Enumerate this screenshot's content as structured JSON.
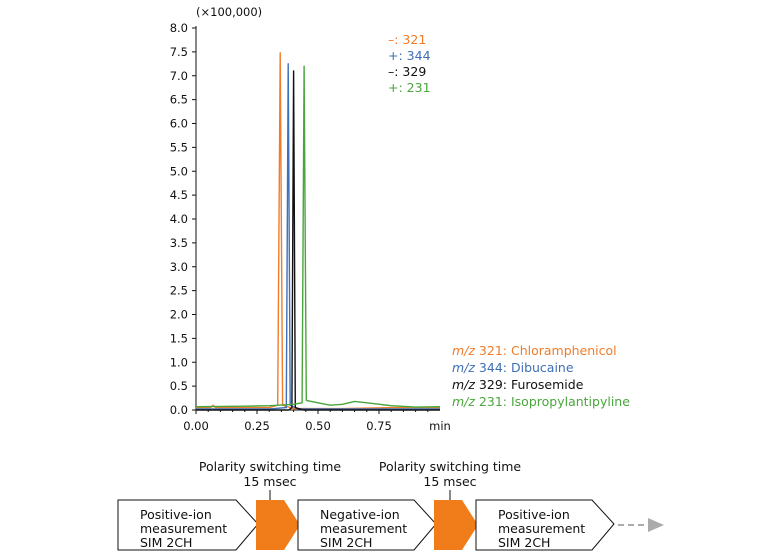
{
  "chart_data": {
    "type": "line",
    "x_unit": "min",
    "y_scale_label": "(×100,000)",
    "xlim": [
      0,
      1.0
    ],
    "ylim": [
      0,
      8.0
    ],
    "x_ticks": [
      0.0,
      0.25,
      0.5,
      0.75
    ],
    "x_tick_labels": [
      "0.00",
      "0.25",
      "0.50",
      "0.75"
    ],
    "y_ticks": [
      0.0,
      0.5,
      1.0,
      1.5,
      2.0,
      2.5,
      3.0,
      3.5,
      4.0,
      4.5,
      5.0,
      5.5,
      6.0,
      6.5,
      7.0,
      7.5,
      8.0
    ],
    "y_tick_labels": [
      "0.0",
      "0.5",
      "1.0",
      "1.5",
      "2.0",
      "2.5",
      "3.0",
      "3.5",
      "4.0",
      "4.5",
      "5.0",
      "5.5",
      "6.0",
      "6.5",
      "7.0",
      "7.5",
      "8.0"
    ],
    "grid": false,
    "legend_position": "top-right",
    "series": [
      {
        "legend": "–: 321",
        "prefix": "m/z",
        "value": "321",
        "compound": "Chloramphenicol",
        "color": "#f07c2a",
        "points": [
          [
            0,
            0.05
          ],
          [
            0.06,
            0.05
          ],
          [
            0.07,
            0.1
          ],
          [
            0.08,
            0.05
          ],
          [
            0.2,
            0.05
          ],
          [
            0.3,
            0.05
          ],
          [
            0.335,
            0.1
          ],
          [
            0.345,
            7.48
          ],
          [
            0.355,
            0.1
          ],
          [
            0.4,
            0.03
          ],
          [
            0.6,
            0.03
          ],
          [
            0.8,
            0.05
          ],
          [
            1.0,
            0.05
          ]
        ]
      },
      {
        "legend": "+: 344",
        "prefix": "m/z",
        "value": "344",
        "compound": "Dibucaine",
        "color": "#3f6fb6",
        "points": [
          [
            0,
            0.02
          ],
          [
            0.3,
            0.02
          ],
          [
            0.37,
            0.05
          ],
          [
            0.378,
            7.25
          ],
          [
            0.386,
            0.1
          ],
          [
            0.42,
            0.02
          ],
          [
            0.7,
            0.02
          ],
          [
            1.0,
            0.02
          ]
        ]
      },
      {
        "legend": "–: 329",
        "prefix": "m/z",
        "value": "329",
        "compound": "Furosemide",
        "color": "#111111",
        "points": [
          [
            0,
            0.0
          ],
          [
            0.38,
            0.0
          ],
          [
            0.393,
            0.05
          ],
          [
            0.4,
            7.1
          ],
          [
            0.407,
            0.05
          ],
          [
            0.44,
            0.0
          ],
          [
            1.0,
            0.0
          ]
        ]
      },
      {
        "legend": "+: 231",
        "prefix": "m/z",
        "value": "231",
        "compound": "Isopropylantipyline",
        "color": "#4aa63c",
        "points": [
          [
            0,
            0.07
          ],
          [
            0.2,
            0.08
          ],
          [
            0.3,
            0.09
          ],
          [
            0.4,
            0.12
          ],
          [
            0.435,
            0.15
          ],
          [
            0.443,
            7.2
          ],
          [
            0.452,
            0.2
          ],
          [
            0.5,
            0.15
          ],
          [
            0.55,
            0.1
          ],
          [
            0.6,
            0.12
          ],
          [
            0.65,
            0.18
          ],
          [
            0.7,
            0.15
          ],
          [
            0.8,
            0.09
          ],
          [
            0.9,
            0.06
          ],
          [
            1.0,
            0.07
          ]
        ]
      }
    ]
  },
  "process": {
    "switch_label_1": "Polarity switching time",
    "switch_time_1": "15 msec",
    "switch_label_2": "Polarity switching time",
    "switch_time_2": "15 msec",
    "steps": [
      {
        "line1": "Positive-ion",
        "line2": "measurement",
        "line3": "SIM 2CH"
      },
      {
        "line1": "Negative-ion",
        "line2": "measurement",
        "line3": "SIM 2CH"
      },
      {
        "line1": "Positive-ion",
        "line2": "measurement",
        "line3": "SIM 2CH"
      }
    ],
    "accent_color": "#f07c1a"
  }
}
